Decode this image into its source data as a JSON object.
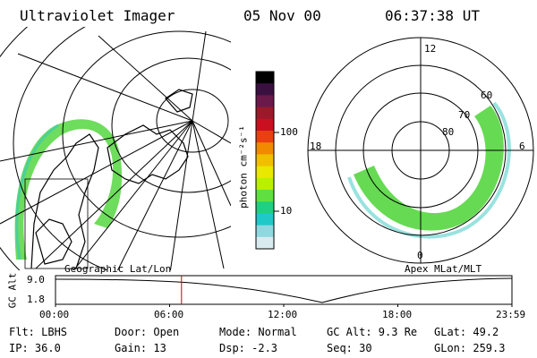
{
  "header": {
    "instrument": "Ultraviolet Imager",
    "date": "05 Nov 00",
    "time": "06:37:38 UT"
  },
  "left_panel": {
    "label": "Geographic Lat/Lon"
  },
  "right_panel": {
    "label": "Apex MLat/MLT",
    "mlt_labels": [
      "12",
      "18",
      "6",
      "0"
    ],
    "lat_labels": [
      "60",
      "70",
      "80"
    ]
  },
  "colorbar": {
    "unit": "photon cm⁻²s⁻¹",
    "ticks": [
      "100",
      "10"
    ],
    "colors": [
      "#000000",
      "#3a1040",
      "#6a1a4a",
      "#9a1a2a",
      "#c81020",
      "#e84010",
      "#f08a00",
      "#f0c000",
      "#e8e800",
      "#b8f000",
      "#60e040",
      "#20d080",
      "#20c8c8",
      "#90d8e0",
      "#d8ecf0"
    ]
  },
  "timeline": {
    "axis_label": "GC Alt",
    "y_ticks": [
      "9.0",
      "1.8"
    ],
    "x_ticks": [
      "00:00",
      "06:00",
      "12:00",
      "18:00",
      "23:59"
    ],
    "current_time_fraction": 0.276
  },
  "info": {
    "flt": "Flt: LBHS",
    "ip": "IP: 36.0",
    "door": "Door: Open",
    "gain": "Gain: 13",
    "mode": "Mode: Normal",
    "dsp": "Dsp:   -2.3",
    "gcalt": "GC Alt: 9.3 Re",
    "seq": "Seq: 30",
    "glat": "GLat:  49.2",
    "glon": "GLon: 259.3"
  }
}
